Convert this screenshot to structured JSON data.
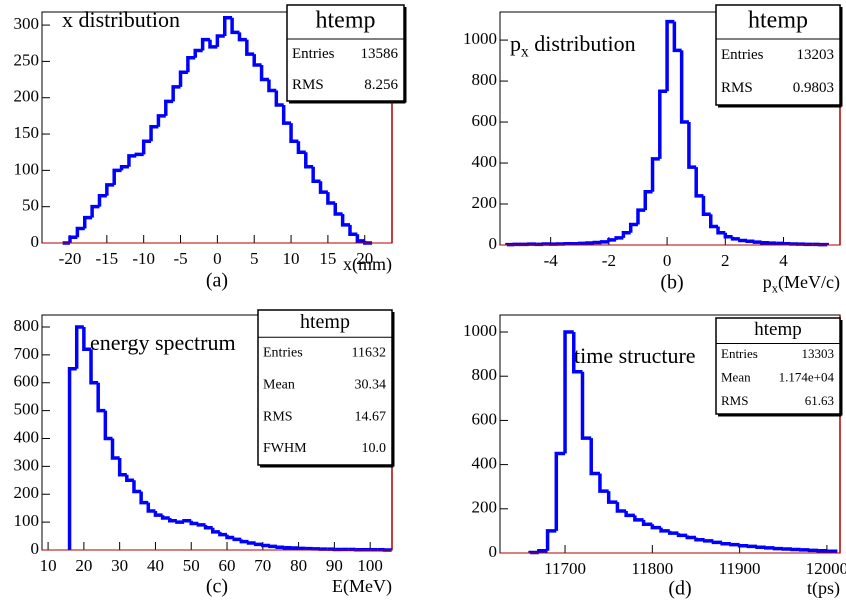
{
  "chart_data": [
    {
      "type": "histogram",
      "title": [
        {
          "text": "x distribution"
        }
      ],
      "xlabel": [
        {
          "text": "x(mm)"
        }
      ],
      "caption": "(a)",
      "color": "#0000ff",
      "bins": [
        -21,
        -20,
        -19,
        -18,
        -17,
        -16,
        -15,
        -14,
        -13,
        -12,
        -11,
        -10,
        -9,
        -8,
        -7,
        -6,
        -5,
        -4,
        -3,
        -2,
        -1,
        0,
        1,
        2,
        3,
        4,
        5,
        6,
        7,
        8,
        9,
        10,
        11,
        12,
        13,
        14,
        15,
        16,
        17,
        18,
        19,
        20,
        21
      ],
      "counts": [
        0,
        8,
        20,
        35,
        50,
        65,
        80,
        100,
        105,
        120,
        122,
        140,
        160,
        175,
        195,
        215,
        235,
        255,
        265,
        280,
        270,
        285,
        310,
        290,
        280,
        260,
        245,
        225,
        210,
        190,
        165,
        140,
        125,
        105,
        85,
        70,
        55,
        40,
        25,
        12,
        3,
        0
      ],
      "xlim": [
        -23.8,
        23.7
      ],
      "ylim": [
        0,
        318
      ],
      "xticks": [
        -20,
        -15,
        -10,
        -5,
        0,
        5,
        10,
        15,
        20
      ],
      "yticks": [
        0,
        50,
        100,
        150,
        200,
        250,
        300
      ],
      "stats": {
        "title": "htemp",
        "rows": [
          [
            "Entries",
            "13586"
          ],
          [
            "RMS",
            "8.256"
          ]
        ]
      }
    },
    {
      "type": "histogram",
      "title": [
        {
          "text": "p"
        },
        {
          "text": "x",
          "sub": true
        },
        {
          "text": " distribution"
        }
      ],
      "xlabel": [
        {
          "text": "p"
        },
        {
          "text": "x",
          "sub": true
        },
        {
          "text": "(MeV/c)"
        }
      ],
      "caption": "(b)",
      "color": "#0000ff",
      "bins": [
        -5.5,
        -5.25,
        -5,
        -4.75,
        -4.5,
        -4.25,
        -4,
        -3.75,
        -3.5,
        -3.25,
        -3,
        -2.75,
        -2.5,
        -2.25,
        -2,
        -1.75,
        -1.5,
        -1.25,
        -1,
        -0.75,
        -0.5,
        -0.25,
        0,
        0.25,
        0.5,
        0.75,
        1,
        1.25,
        1.5,
        1.75,
        2,
        2.25,
        2.5,
        2.75,
        3,
        3.25,
        3.5,
        3.75,
        4,
        4.25,
        4.5,
        4.75,
        5,
        5.25,
        5.5
      ],
      "counts": [
        2,
        3,
        3,
        4,
        3,
        5,
        4,
        5,
        6,
        6,
        8,
        10,
        12,
        15,
        25,
        35,
        60,
        100,
        170,
        260,
        420,
        750,
        1090,
        950,
        600,
        380,
        240,
        150,
        90,
        60,
        40,
        30,
        22,
        18,
        14,
        11,
        9,
        8,
        6,
        5,
        4,
        3,
        3,
        2
      ],
      "xlim": [
        -5.74,
        5.94
      ],
      "ylim": [
        0,
        1137
      ],
      "xticks": [
        -4,
        -2,
        0,
        2,
        4
      ],
      "yticks": [
        0,
        200,
        400,
        600,
        800,
        1000
      ],
      "stats": {
        "title": "htemp",
        "rows": [
          [
            "Entries",
            "13203"
          ],
          [
            "RMS",
            "0.9803"
          ]
        ]
      }
    },
    {
      "type": "histogram",
      "title": [
        {
          "text": "energy spectrum"
        }
      ],
      "xlabel": [
        {
          "text": "E(MeV)"
        }
      ],
      "caption": "(c)",
      "color": "#0000ff",
      "bins": [
        16,
        18,
        20,
        22,
        24,
        26,
        28,
        30,
        32,
        34,
        36,
        38,
        40,
        42,
        44,
        46,
        48,
        50,
        52,
        54,
        56,
        58,
        60,
        62,
        64,
        66,
        68,
        70,
        72,
        74,
        76,
        78,
        80,
        82,
        84,
        86,
        88,
        90,
        92,
        94,
        96,
        98,
        100,
        102,
        104,
        106
      ],
      "counts": [
        650,
        800,
        720,
        600,
        500,
        400,
        330,
        270,
        250,
        210,
        170,
        140,
        125,
        115,
        105,
        100,
        105,
        95,
        90,
        80,
        65,
        55,
        45,
        38,
        30,
        25,
        20,
        16,
        13,
        10,
        8,
        7,
        6,
        5,
        4,
        3,
        3,
        2,
        2,
        2,
        1,
        1,
        1,
        1,
        0
      ],
      "xlim": [
        8.3,
        106.1
      ],
      "ylim": [
        0,
        843
      ],
      "xticks": [
        10,
        20,
        30,
        40,
        50,
        60,
        70,
        80,
        90,
        100
      ],
      "yticks": [
        0,
        100,
        200,
        300,
        400,
        500,
        600,
        700,
        800
      ],
      "stats": {
        "title": "htemp",
        "rows": [
          [
            "Entries",
            "11632"
          ],
          [
            "Mean",
            "30.34"
          ],
          [
            "RMS",
            "14.67"
          ],
          [
            "FWHM",
            "10.0"
          ]
        ]
      }
    },
    {
      "type": "histogram",
      "title": [
        {
          "text": "time structure"
        }
      ],
      "xlabel": [
        {
          "text": "t(ps)"
        }
      ],
      "caption": "(d)",
      "color": "#0000ff",
      "bins": [
        11660,
        11670,
        11680,
        11690,
        11700,
        11710,
        11720,
        11730,
        11740,
        11750,
        11760,
        11770,
        11780,
        11790,
        11800,
        11810,
        11820,
        11830,
        11840,
        11850,
        11860,
        11870,
        11880,
        11890,
        11900,
        11910,
        11920,
        11930,
        11940,
        11950,
        11960,
        11970,
        11980,
        11990,
        12000,
        12010
      ],
      "counts": [
        2,
        10,
        100,
        450,
        1000,
        820,
        520,
        360,
        280,
        230,
        190,
        170,
        150,
        130,
        115,
        100,
        90,
        80,
        70,
        60,
        55,
        48,
        42,
        38,
        33,
        30,
        26,
        23,
        20,
        18,
        16,
        14,
        12,
        10,
        8
      ],
      "xlim": [
        11625.5,
        12015
      ],
      "ylim": [
        0,
        1077
      ],
      "xticks": [
        11700,
        11800,
        11900,
        12000
      ],
      "yticks": [
        0,
        200,
        400,
        600,
        800,
        1000
      ],
      "stats": {
        "title": "htemp",
        "rows": [
          [
            "Entries",
            "13303"
          ],
          [
            "Mean",
            "1.174e+04"
          ],
          [
            "RMS",
            "61.63"
          ]
        ]
      }
    }
  ]
}
